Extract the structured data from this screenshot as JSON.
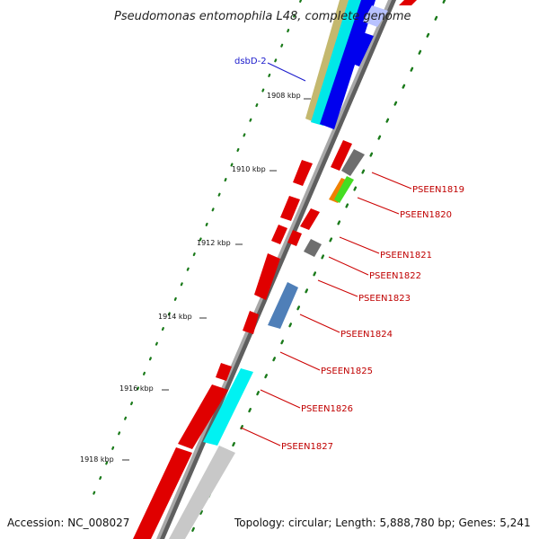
{
  "map": {
    "title": "Pseudomonas entomophila L48, complete genome",
    "accession": "Accession: NC_008027",
    "topology": "Topology: circular; Length: 5,888,780 bp; Genes: 5,241"
  },
  "ruler": [
    {
      "label": "1908 kbp"
    },
    {
      "label": "1910 kbp"
    },
    {
      "label": "1912 kbp"
    },
    {
      "label": "1914 kbp"
    },
    {
      "label": "1916 kbp"
    },
    {
      "label": "1918 kbp"
    }
  ],
  "genes": [
    {
      "label": "dsbD-2",
      "color": "#1a1acc"
    },
    {
      "label": "PSEEN1819",
      "color": "#cc0000"
    },
    {
      "label": "PSEEN1820",
      "color": "#cc0000"
    },
    {
      "label": "PSEEN1821",
      "color": "#cc0000"
    },
    {
      "label": "PSEEN1822",
      "color": "#cc0000"
    },
    {
      "label": "PSEEN1823",
      "color": "#cc0000"
    },
    {
      "label": "PSEEN1824",
      "color": "#cc0000"
    },
    {
      "label": "PSEEN1825",
      "color": "#cc0000"
    },
    {
      "label": "PSEEN1826",
      "color": "#cc0000"
    },
    {
      "label": "PSEEN1827",
      "color": "#cc0000"
    }
  ],
  "colors": {
    "cds_forward": "#ff0000",
    "cds_reverse": "#0000ee",
    "rna": "#00ffff",
    "backbone": "#888888",
    "gc_ticks": "#1a7a1a"
  }
}
